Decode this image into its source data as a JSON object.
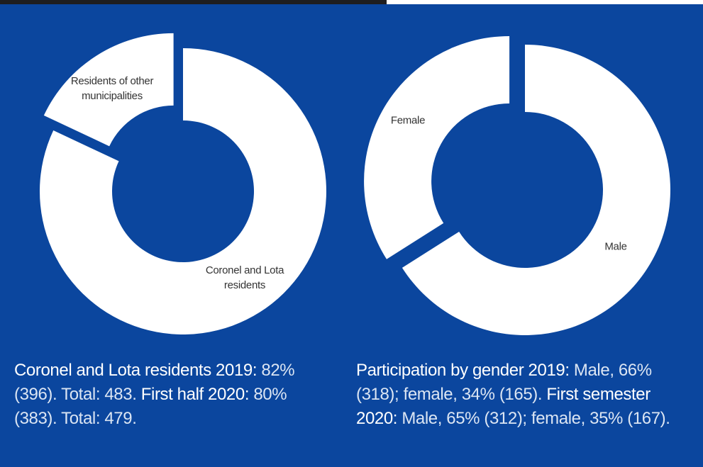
{
  "chart_data": [
    {
      "type": "pie",
      "categories": [
        "Coronel and Lota residents",
        "Residents of other municipalities"
      ],
      "values": [
        82,
        18
      ],
      "color": "#ffffff",
      "exploded": [
        false,
        true
      ],
      "caption": [
        {
          "text": "Coronel and Lota residents 2019:",
          "strong": true
        },
        {
          "text": " 82% (396). Total: 483. ",
          "strong": false
        },
        {
          "text": "First half 2020:",
          "strong": true
        },
        {
          "text": " 80% (383). Total: 479.",
          "strong": false
        }
      ]
    },
    {
      "type": "pie",
      "categories": [
        "Male",
        "Female"
      ],
      "values": [
        66,
        34
      ],
      "color": "#ffffff",
      "exploded": [
        false,
        true
      ],
      "caption": [
        {
          "text": "Participation by gender 2019:",
          "strong": true
        },
        {
          "text": " Male, 66% (318); female, 34% (165). ",
          "strong": false
        },
        {
          "text": "First semester 2020:",
          "strong": true
        },
        {
          "text": " Male, 65% (312); female, 35% (167).",
          "strong": false
        }
      ]
    }
  ]
}
